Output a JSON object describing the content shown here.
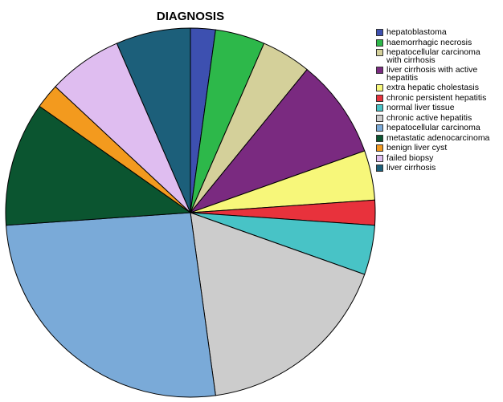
{
  "chart_data": {
    "type": "pie",
    "title": "DIAGNOSIS",
    "categories": [
      "hepatoblastoma",
      "haemorrhagic necrosis",
      "hepatocellular carcinoma with cirrhosis",
      "liver cirrhosis with active hepatitis",
      "extra hepatic cholestasis",
      "chronic persistent hepatitis",
      "normal liver tissue",
      "chronic active hepatitis",
      "hepatocellular carcinoma",
      "metastatic adenocarcinoma",
      "benign liver cyst",
      "failed biopsy",
      "liver cirrhosis"
    ],
    "values": [
      1,
      2,
      2,
      4,
      2,
      1,
      2,
      8,
      12,
      5,
      1,
      3,
      3
    ],
    "colors": [
      "#3d50b0",
      "#2db84a",
      "#d4d09a",
      "#7a2a80",
      "#f7f77a",
      "#e8323c",
      "#48c3c6",
      "#cccccc",
      "#7aaad8",
      "#0b5530",
      "#f39a1e",
      "#dfbdf0",
      "#1c5f7a"
    ]
  }
}
